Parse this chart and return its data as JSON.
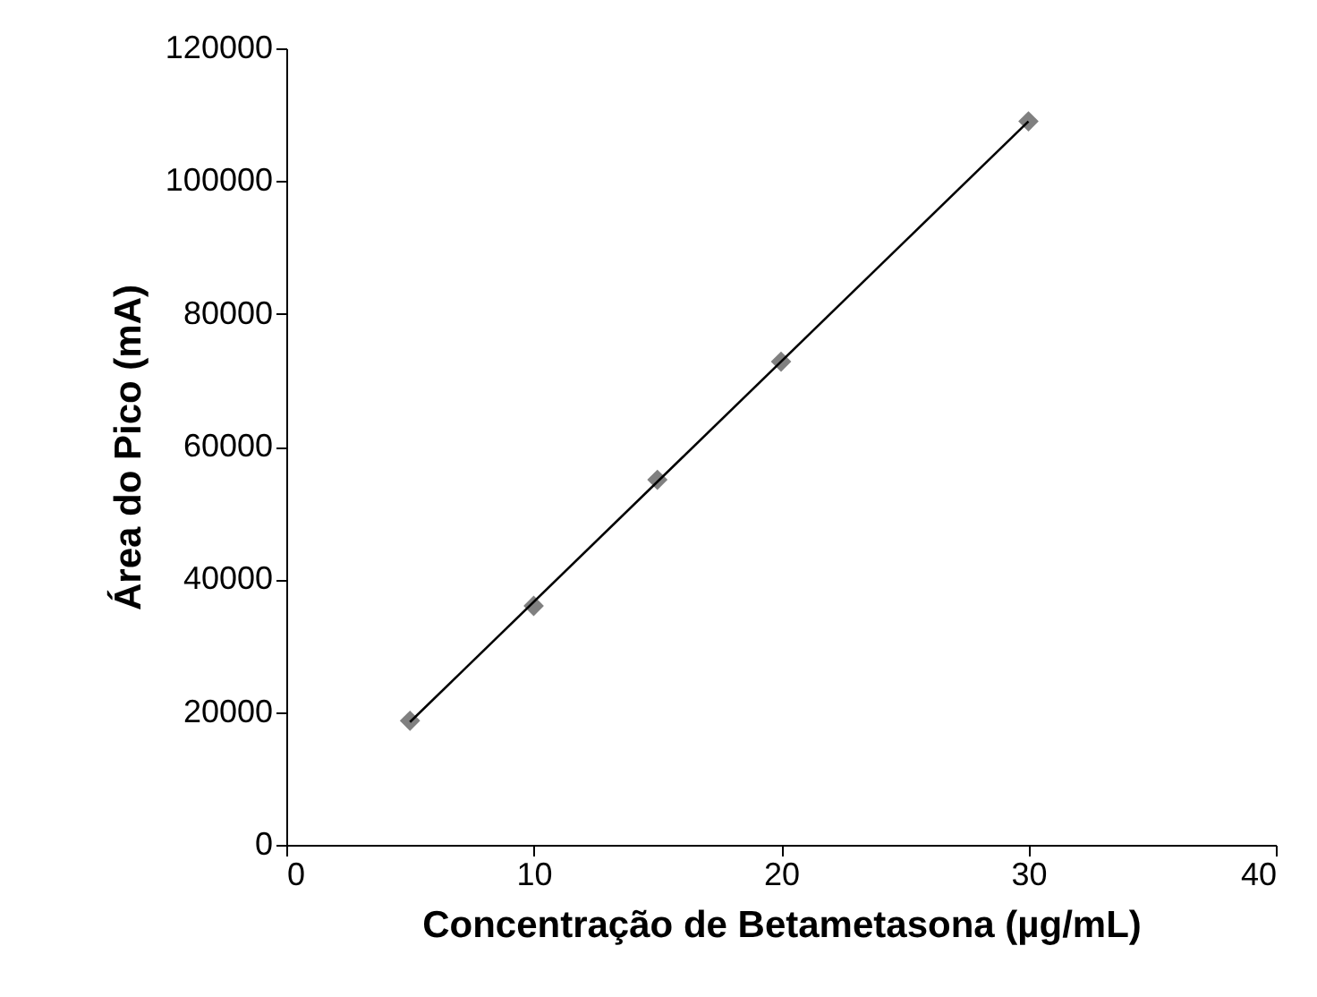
{
  "chart_data": {
    "type": "scatter",
    "xlabel": "Concentração de Betametasona (µg/mL)",
    "ylabel": "Área do Pico (mA)",
    "x": [
      5,
      10,
      15,
      20,
      30
    ],
    "series": [
      {
        "color": "#808080",
        "values": [
          18700,
          36000,
          55000,
          72800,
          109000
        ],
        "marker": "diamond"
      },
      {
        "type": "line",
        "color": "#000000",
        "x": [
          5,
          30
        ],
        "values": [
          18500,
          109000
        ],
        "marker": "none",
        "line_style": "solid"
      }
    ],
    "xlim": [
      0,
      40
    ],
    "xticks": [
      0,
      10,
      20,
      30,
      40
    ],
    "ylim": [
      0,
      120000
    ],
    "yticks": [
      0,
      20000,
      40000,
      60000,
      80000,
      100000,
      120000
    ],
    "grid": false
  }
}
